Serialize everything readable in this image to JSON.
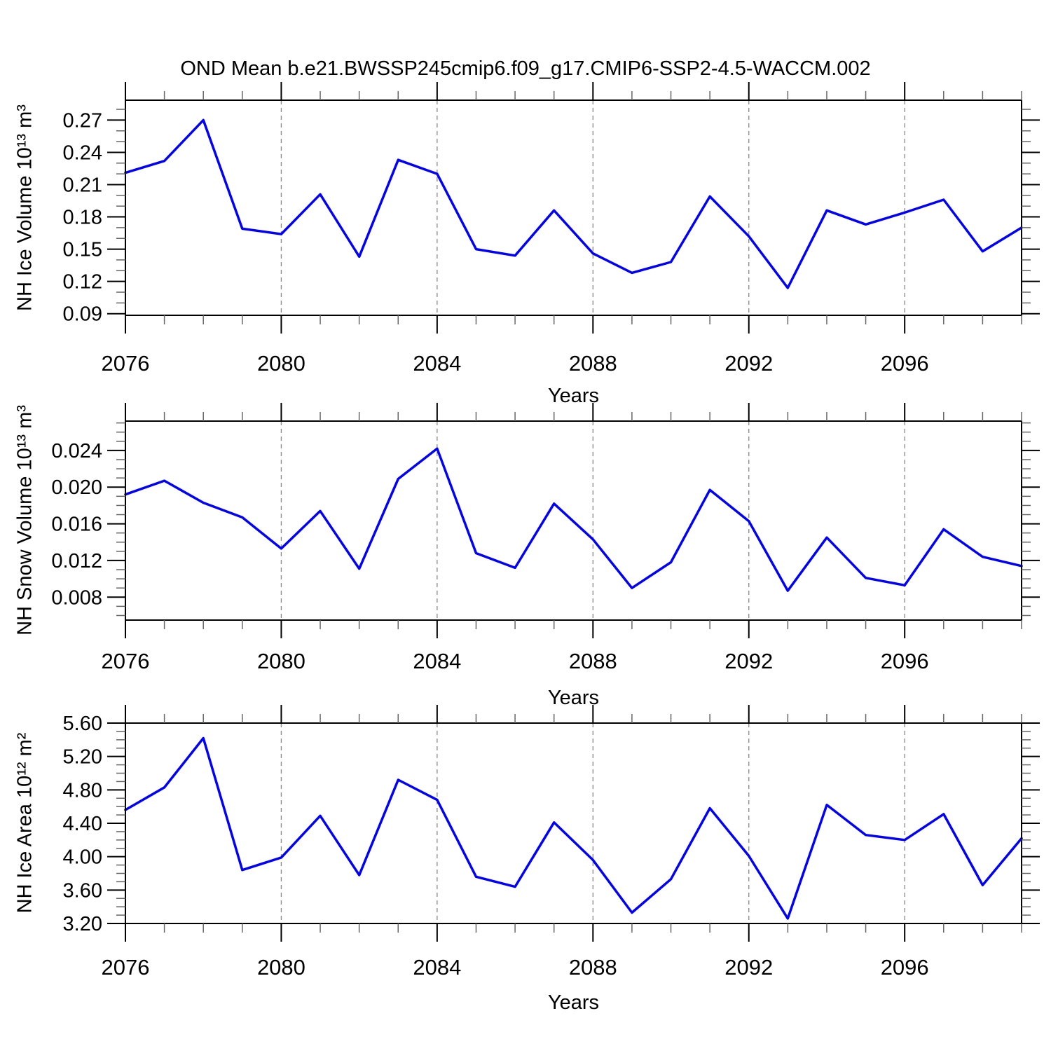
{
  "title": "OND Mean b.e21.BWSSP245cmip6.f09_g17.CMIP6-SSP2-4.5-WACCM.002",
  "colors": {
    "line": "#0000ff",
    "grid": "#888888",
    "axis": "#000000",
    "minor_tick": "#666666",
    "background": "#ffffff",
    "text": "#000000"
  },
  "chart_data": [
    {
      "type": "line",
      "title": "",
      "xlabel": "Years",
      "ylabel": "NH Ice Volume 10¹³ m³",
      "legend": "none",
      "grid_style": "dashed-vertical",
      "x": [
        2076,
        2077,
        2078,
        2079,
        2080,
        2081,
        2082,
        2083,
        2084,
        2085,
        2086,
        2087,
        2088,
        2089,
        2090,
        2091,
        2092,
        2093,
        2094,
        2095,
        2096,
        2097,
        2098,
        2099
      ],
      "values": [
        0.221,
        0.232,
        0.27,
        0.169,
        0.164,
        0.201,
        0.143,
        0.233,
        0.22,
        0.15,
        0.144,
        0.186,
        0.146,
        0.128,
        0.138,
        0.199,
        0.162,
        0.114,
        0.186,
        0.173,
        0.184,
        0.196,
        0.148,
        0.17
      ],
      "xlim": [
        2076,
        2099
      ],
      "ylim": [
        0.0885,
        0.2885
      ],
      "xticks_major": [
        2076,
        2080,
        2084,
        2088,
        2092,
        2096
      ],
      "xtick_labels": [
        "2076",
        "2080",
        "2084",
        "2088",
        "2092",
        "2096"
      ],
      "xticks_minor_step": 1,
      "yticks_major": [
        0.27,
        0.24,
        0.21,
        0.18,
        0.15,
        0.12,
        0.09
      ],
      "ytick_labels": [
        "0.27",
        "0.24",
        "0.21",
        "0.18",
        "0.15",
        "0.12",
        "0.09"
      ],
      "yticks_minor_step": 0.01,
      "gridlines_x": [
        2080,
        2084,
        2088,
        2092,
        2096
      ]
    },
    {
      "type": "line",
      "title": "",
      "xlabel": "Years",
      "ylabel": "NH Snow Volume 10¹³ m³",
      "legend": "none",
      "grid_style": "dashed-vertical",
      "x": [
        2076,
        2077,
        2078,
        2079,
        2080,
        2081,
        2082,
        2083,
        2084,
        2085,
        2086,
        2087,
        2088,
        2089,
        2090,
        2091,
        2092,
        2093,
        2094,
        2095,
        2096,
        2097,
        2098,
        2099
      ],
      "values": [
        0.0192,
        0.0207,
        0.0183,
        0.0167,
        0.0133,
        0.0174,
        0.0111,
        0.0209,
        0.0242,
        0.0128,
        0.0112,
        0.0182,
        0.0143,
        0.009,
        0.0118,
        0.0197,
        0.0163,
        0.0087,
        0.0145,
        0.0101,
        0.0093,
        0.0154,
        0.0124,
        0.0114
      ],
      "xlim": [
        2076,
        2099
      ],
      "ylim": [
        0.0055,
        0.0272
      ],
      "xticks_major": [
        2076,
        2080,
        2084,
        2088,
        2092,
        2096
      ],
      "xtick_labels": [
        "2076",
        "2080",
        "2084",
        "2088",
        "2092",
        "2096"
      ],
      "xticks_minor_step": 1,
      "yticks_major": [
        0.024,
        0.02,
        0.016,
        0.012,
        0.008
      ],
      "ytick_labels": [
        "0.024",
        "0.020",
        "0.016",
        "0.012",
        "0.008"
      ],
      "yticks_minor_step": 0.001,
      "gridlines_x": [
        2080,
        2084,
        2088,
        2092,
        2096
      ]
    },
    {
      "type": "line",
      "title": "",
      "xlabel": "Years",
      "ylabel": "NH Ice Area 10¹² m²",
      "legend": "none",
      "grid_style": "dashed-vertical",
      "x": [
        2076,
        2077,
        2078,
        2079,
        2080,
        2081,
        2082,
        2083,
        2084,
        2085,
        2086,
        2087,
        2088,
        2089,
        2090,
        2091,
        2092,
        2093,
        2094,
        2095,
        2096,
        2097,
        2098,
        2099
      ],
      "values": [
        4.56,
        4.83,
        5.42,
        3.84,
        3.99,
        4.49,
        3.78,
        4.92,
        4.68,
        3.76,
        3.64,
        4.41,
        3.96,
        3.33,
        3.73,
        4.58,
        4.01,
        3.26,
        4.62,
        4.26,
        4.2,
        4.51,
        3.66,
        4.22
      ],
      "xlim": [
        2076,
        2099
      ],
      "ylim": [
        3.2,
        5.6
      ],
      "xticks_major": [
        2076,
        2080,
        2084,
        2088,
        2092,
        2096
      ],
      "xtick_labels": [
        "2076",
        "2080",
        "2084",
        "2088",
        "2092",
        "2096"
      ],
      "xticks_minor_step": 1,
      "yticks_major": [
        5.6,
        5.2,
        4.8,
        4.4,
        4.0,
        3.6,
        3.2
      ],
      "ytick_labels": [
        "5.60",
        "5.20",
        "4.80",
        "4.40",
        "4.00",
        "3.60",
        "3.20"
      ],
      "yticks_minor_step": 0.1,
      "gridlines_x": [
        2080,
        2084,
        2088,
        2092,
        2096
      ]
    }
  ]
}
